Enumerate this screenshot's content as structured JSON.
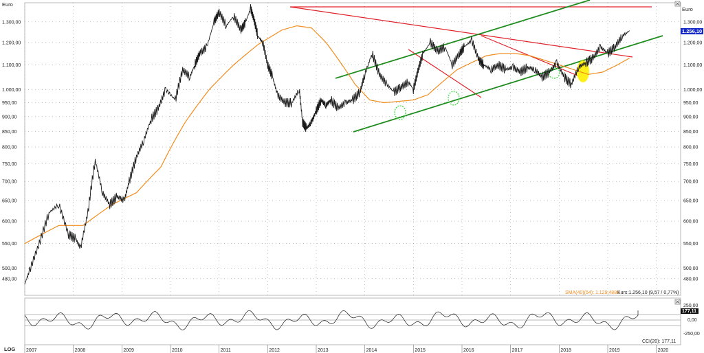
{
  "main_chart": {
    "currency_label_left": "Euro",
    "currency_label_right": "Euro",
    "price_badge": "1.256,10",
    "indicator_legend": {
      "sma": "SMA(40)(54): 1.129,4886",
      "quote": "Kurs:1.256,10 (9,57 / 0,77%)"
    },
    "colors": {
      "price": "#1a1a1a",
      "sma": "#f28c1e",
      "support": "#1e8c1e",
      "resistance": "#e0222a",
      "badge_bg": "#1428c8",
      "highlight": "#ffee00"
    }
  },
  "oscillator": {
    "value_badge": "177,11",
    "label": "CCI(20): 177,11",
    "tick_labels": [
      "250,00",
      "0,00",
      "-250,00"
    ]
  },
  "bottom_bar": {
    "scale_button": "LOG"
  },
  "chart_data": [
    {
      "type": "line",
      "title": "",
      "xlabel": "",
      "ylabel": "Euro",
      "y_scale": "log",
      "ylim": [
        450,
        1400
      ],
      "xlim": [
        2007.0,
        2020.5
      ],
      "x_ticks": [
        "2007",
        "2008",
        "2009",
        "2010",
        "2011",
        "2012",
        "2013",
        "2014",
        "2015",
        "2016",
        "2017",
        "2018",
        "2019",
        "2020"
      ],
      "y_ticks": [
        "480,00",
        "500,00",
        "550,00",
        "600,00",
        "650,00",
        "700,00",
        "750,00",
        "800,00",
        "850,00",
        "900,00",
        "950,00",
        "1.000,00",
        "1.100,00",
        "1.200,00",
        "1.300,00"
      ],
      "y_tick_values": [
        480,
        500,
        550,
        600,
        650,
        700,
        750,
        800,
        850,
        900,
        950,
        1000,
        1100,
        1200,
        1300
      ],
      "grid": true,
      "series": [
        {
          "name": "Kurs",
          "x": [
            2007.0,
            2007.1,
            2007.3,
            2007.5,
            2007.7,
            2007.9,
            2008.05,
            2008.15,
            2008.3,
            2008.45,
            2008.6,
            2008.75,
            2008.9,
            2009.05,
            2009.15,
            2009.3,
            2009.45,
            2009.6,
            2009.75,
            2009.9,
            2010.1,
            2010.25,
            2010.4,
            2010.5,
            2010.6,
            2010.75,
            2010.9,
            2011.0,
            2011.15,
            2011.3,
            2011.45,
            2011.55,
            2011.65,
            2011.72,
            2011.8,
            2011.9,
            2012.0,
            2012.1,
            2012.2,
            2012.35,
            2012.5,
            2012.65,
            2012.72,
            2012.8,
            2012.9,
            2013.0,
            2013.1,
            2013.2,
            2013.3,
            2013.45,
            2013.6,
            2013.75,
            2013.9,
            2014.0,
            2014.15,
            2014.3,
            2014.45,
            2014.6,
            2014.75,
            2014.9,
            2015.0,
            2015.1,
            2015.2,
            2015.35,
            2015.5,
            2015.65,
            2015.8,
            2015.95,
            2016.05,
            2016.2,
            2016.35,
            2016.45,
            2016.6,
            2016.75,
            2016.9,
            2017.05,
            2017.2,
            2017.35,
            2017.5,
            2017.65,
            2017.8,
            2017.95,
            2018.1,
            2018.25,
            2018.4,
            2018.55,
            2018.7,
            2018.85,
            2019.0,
            2019.15,
            2019.3,
            2019.45
          ],
          "y": [
            470,
            495,
            550,
            620,
            640,
            570,
            560,
            540,
            620,
            760,
            670,
            640,
            660,
            650,
            700,
            770,
            820,
            890,
            930,
            1000,
            960,
            1080,
            1050,
            1100,
            1150,
            1180,
            1300,
            1350,
            1280,
            1330,
            1260,
            1300,
            1370,
            1310,
            1230,
            1200,
            1100,
            1050,
            980,
            950,
            950,
            1000,
            880,
            860,
            880,
            920,
            960,
            940,
            960,
            930,
            950,
            960,
            990,
            1060,
            1150,
            1060,
            1020,
            990,
            1010,
            1030,
            1000,
            1080,
            1150,
            1200,
            1160,
            1180,
            1100,
            1150,
            1180,
            1210,
            1120,
            1100,
            1080,
            1100,
            1080,
            1090,
            1070,
            1090,
            1080,
            1050,
            1070,
            1110,
            1050,
            1020,
            1090,
            1110,
            1130,
            1180,
            1150,
            1180,
            1230,
            1256
          ]
        },
        {
          "name": "SMA(40)",
          "x": [
            2007.0,
            2007.7,
            2008.2,
            2008.8,
            2009.3,
            2009.8,
            2010.3,
            2010.8,
            2011.3,
            2011.8,
            2012.3,
            2012.6,
            2012.9,
            2013.2,
            2013.5,
            2013.8,
            2014.1,
            2014.4,
            2014.7,
            2015.0,
            2015.3,
            2015.6,
            2015.9,
            2016.2,
            2016.5,
            2016.8,
            2017.1,
            2017.4,
            2017.7,
            2018.0,
            2018.3,
            2018.6,
            2018.9,
            2019.2,
            2019.45
          ],
          "y": [
            550,
            590,
            590,
            640,
            670,
            740,
            880,
            1000,
            1100,
            1190,
            1260,
            1280,
            1270,
            1200,
            1110,
            1020,
            960,
            950,
            955,
            960,
            980,
            1030,
            1080,
            1110,
            1140,
            1150,
            1150,
            1140,
            1120,
            1100,
            1080,
            1060,
            1070,
            1100,
            1130
          ]
        }
      ]
    },
    {
      "type": "line",
      "title": "",
      "series": [
        {
          "name": "CCI(20)",
          "x": [
            2007.0,
            2019.45
          ],
          "y": [
            0,
            177.11
          ]
        }
      ],
      "ylim": [
        -300,
        300
      ],
      "y_ticks": [
        "250,00",
        "0,00",
        "-250,00"
      ]
    }
  ]
}
